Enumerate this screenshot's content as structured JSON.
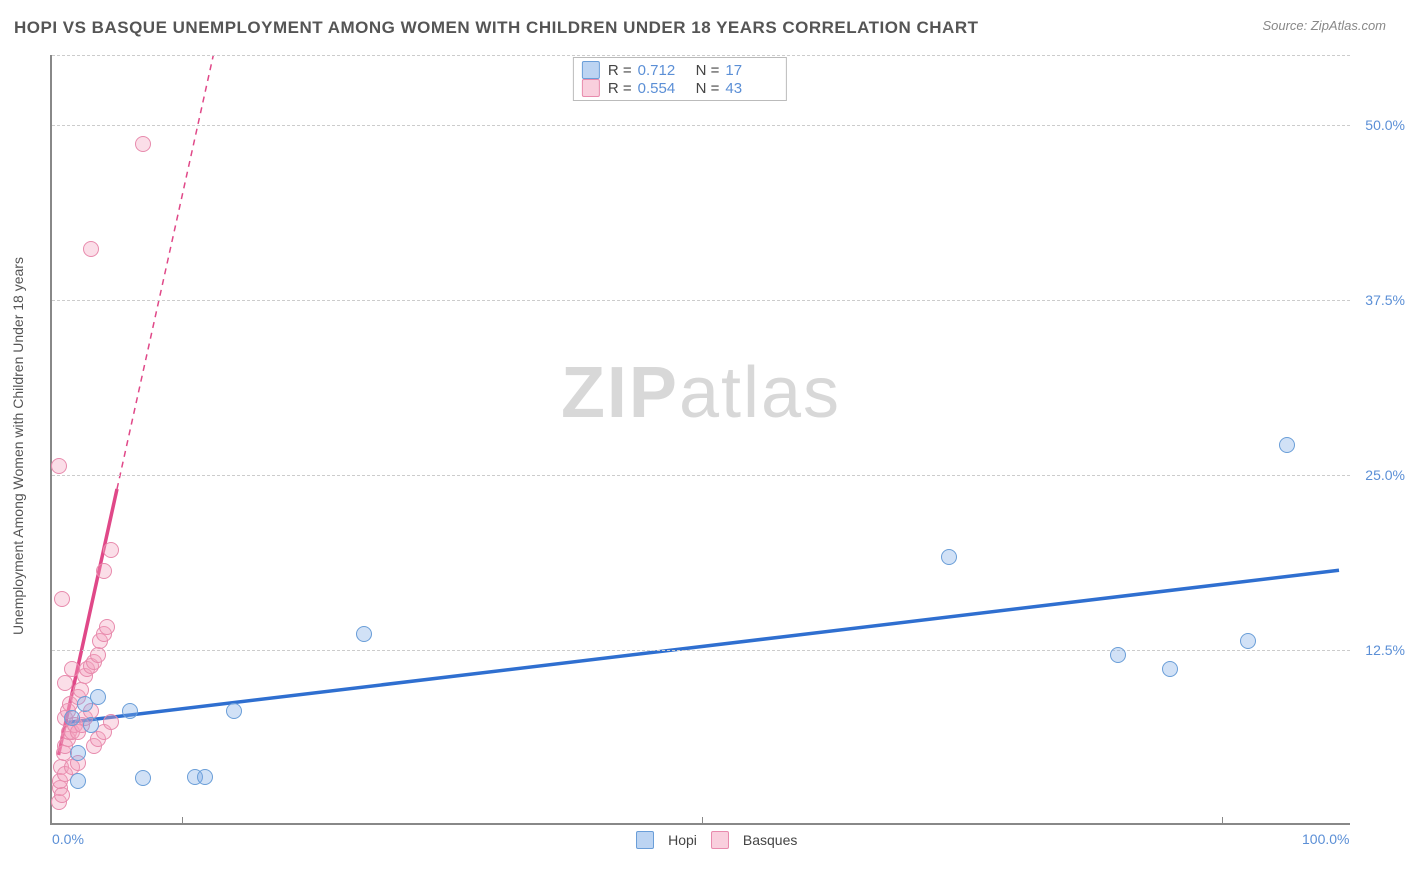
{
  "title": "HOPI VS BASQUE UNEMPLOYMENT AMONG WOMEN WITH CHILDREN UNDER 18 YEARS CORRELATION CHART",
  "source": "Source: ZipAtlas.com",
  "yaxis_title": "Unemployment Among Women with Children Under 18 years",
  "watermark_bold": "ZIP",
  "watermark_light": "atlas",
  "chart": {
    "type": "scatter",
    "xlim": [
      0,
      100
    ],
    "ylim": [
      0,
      55
    ],
    "x_ticks": [
      0,
      100
    ],
    "x_tick_labels": [
      "0.0%",
      "100.0%"
    ],
    "x_minor_ticks": [
      10,
      50,
      90
    ],
    "y_ticks": [
      12.5,
      25.0,
      37.5,
      50.0
    ],
    "y_tick_labels": [
      "12.5%",
      "25.0%",
      "37.5%",
      "50.0%"
    ],
    "grid_color": "#cccccc",
    "background": "#ffffff",
    "series": {
      "hopi": {
        "label": "Hopi",
        "color_fill": "rgba(122,170,230,0.35)",
        "color_stroke": "#6a9ed8",
        "trend_color": "#2f6fd0",
        "R": "0.712",
        "N": "17",
        "points": [
          [
            2,
            3
          ],
          [
            2.5,
            8.5
          ],
          [
            3,
            7
          ],
          [
            6,
            8
          ],
          [
            7,
            3.2
          ],
          [
            11,
            3.3
          ],
          [
            11.8,
            3.3
          ],
          [
            14,
            8
          ],
          [
            24,
            13.5
          ],
          [
            69,
            19
          ],
          [
            86,
            11
          ],
          [
            82,
            12
          ],
          [
            92,
            13
          ],
          [
            95,
            27
          ],
          [
            1.5,
            7.5
          ],
          [
            3.5,
            9
          ],
          [
            2,
            5
          ]
        ],
        "trend_start": [
          1,
          7.3
        ],
        "trend_solid_end": [
          99,
          18.2
        ]
      },
      "basques": {
        "label": "Basques",
        "color_fill": "rgba(244,160,188,0.35)",
        "color_stroke": "#e88bad",
        "trend_color": "#e04888",
        "R": "0.554",
        "N": "43",
        "points": [
          [
            0.5,
            1.5
          ],
          [
            0.6,
            2.5
          ],
          [
            0.8,
            2
          ],
          [
            0.7,
            4
          ],
          [
            0.9,
            5
          ],
          [
            1,
            5.5
          ],
          [
            1.2,
            6
          ],
          [
            1.3,
            6.5
          ],
          [
            1.5,
            6.5
          ],
          [
            1.8,
            7
          ],
          [
            1,
            7.5
          ],
          [
            1.2,
            8
          ],
          [
            1.4,
            8.5
          ],
          [
            2,
            9
          ],
          [
            2.2,
            9.5
          ],
          [
            2.5,
            10.5
          ],
          [
            2.7,
            11
          ],
          [
            3,
            11.2
          ],
          [
            3.2,
            11.5
          ],
          [
            3.5,
            12
          ],
          [
            3.7,
            13
          ],
          [
            4,
            13.5
          ],
          [
            4.2,
            14
          ],
          [
            4,
            18
          ],
          [
            4.5,
            19.5
          ],
          [
            0.8,
            16
          ],
          [
            0.5,
            25.5
          ],
          [
            1,
            10
          ],
          [
            1.5,
            11
          ],
          [
            2,
            6.5
          ],
          [
            2.3,
            7
          ],
          [
            2.5,
            7.5
          ],
          [
            3,
            8
          ],
          [
            3.2,
            5.5
          ],
          [
            3.5,
            6
          ],
          [
            4,
            6.5
          ],
          [
            4.5,
            7.2
          ],
          [
            0.6,
            3
          ],
          [
            1,
            3.5
          ],
          [
            1.5,
            4
          ],
          [
            2,
            4.3
          ],
          [
            7,
            48.5
          ],
          [
            3,
            41
          ]
        ],
        "trend_start": [
          0.5,
          5
        ],
        "trend_solid_end": [
          5,
          24
        ],
        "trend_dash_end": [
          16,
          70
        ]
      }
    }
  },
  "legend_top": [
    {
      "swatch": "blue",
      "R": "0.712",
      "N": "17"
    },
    {
      "swatch": "pink",
      "R": "0.554",
      "N": "43"
    }
  ],
  "legend_bottom": [
    {
      "swatch": "blue",
      "label": "Hopi"
    },
    {
      "swatch": "pink",
      "label": "Basques"
    }
  ]
}
